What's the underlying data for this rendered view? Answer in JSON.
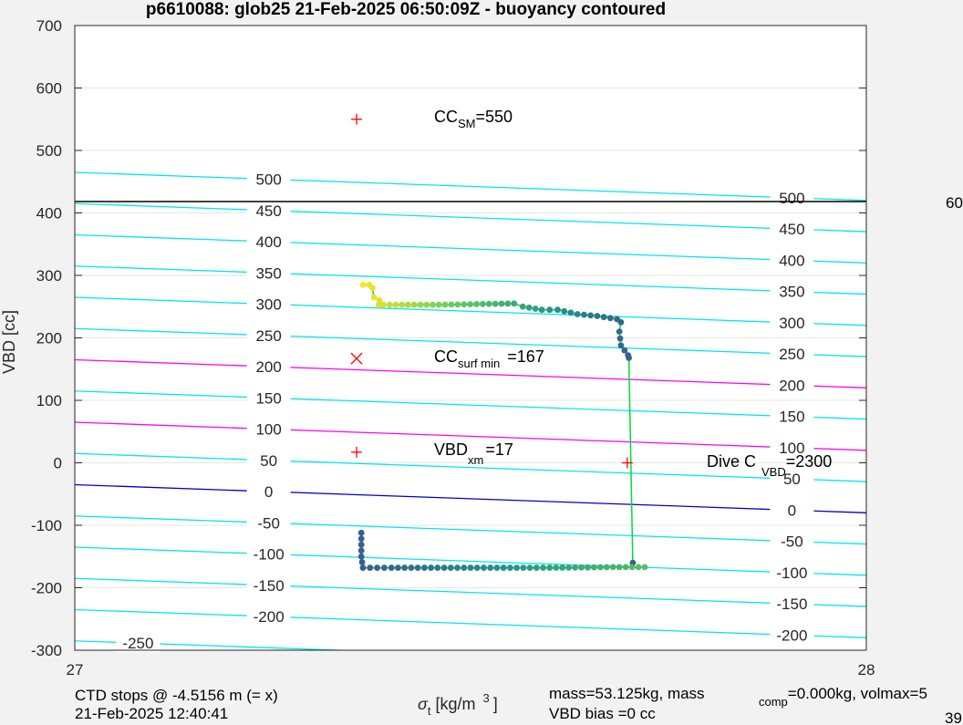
{
  "colors": {
    "figure_bg": "#f2f2f2",
    "axes_bg": "#ffffff",
    "grid": "#e6e6e6",
    "contour_cyan": "#00e6ee",
    "contour_magenta": "#ff00ff",
    "contour_blue": "#0000c8",
    "target_line": "#000000",
    "marker": "#ff0000",
    "path_line": "#00dd33"
  },
  "chart_data": {
    "type": "scatter",
    "title": "p6610088: glob25 21-Feb-2025 06:50:09Z - buoyancy contoured",
    "xlabel_main": "σ",
    "xlabel_sub": "t",
    "xlabel_unit": " [kg/m",
    "xlabel_sup": "3",
    "xlabel_close": "]",
    "ylabel": "VBD [cc]",
    "xlim": [
      27,
      28
    ],
    "ylim": [
      -300,
      700
    ],
    "grid": "on",
    "x_ticks": [
      "27",
      "28"
    ],
    "y_ticks": [
      "-300",
      "-200",
      "-100",
      "0",
      "100",
      "200",
      "300",
      "400",
      "500",
      "600",
      "700"
    ],
    "contour_lines": [
      {
        "level": -250,
        "y0": -285,
        "y1": -330,
        "color": "cyan"
      },
      {
        "level": -200,
        "y0": -235,
        "y1": -280,
        "color": "cyan"
      },
      {
        "level": -150,
        "y0": -185,
        "y1": -230,
        "color": "cyan"
      },
      {
        "level": -100,
        "y0": -135,
        "y1": -180,
        "color": "cyan"
      },
      {
        "level": -50,
        "y0": -85,
        "y1": -130,
        "color": "cyan"
      },
      {
        "level": 0,
        "y0": -35,
        "y1": -80,
        "color": "blue"
      },
      {
        "level": 50,
        "y0": 15,
        "y1": -30,
        "color": "cyan"
      },
      {
        "level": 100,
        "y0": 65,
        "y1": 20,
        "color": "magenta"
      },
      {
        "level": 150,
        "y0": 115,
        "y1": 70,
        "color": "cyan"
      },
      {
        "level": 200,
        "y0": 165,
        "y1": 120,
        "color": "magenta"
      },
      {
        "level": 250,
        "y0": 215,
        "y1": 170,
        "color": "cyan"
      },
      {
        "level": 300,
        "y0": 265,
        "y1": 220,
        "color": "cyan"
      },
      {
        "level": 350,
        "y0": 315,
        "y1": 270,
        "color": "cyan"
      },
      {
        "level": 400,
        "y0": 365,
        "y1": 320,
        "color": "cyan"
      },
      {
        "level": 450,
        "y0": 415,
        "y1": 370,
        "color": "cyan"
      },
      {
        "level": 500,
        "y0": 465,
        "y1": 420,
        "color": "cyan"
      }
    ],
    "contour_labels_left": [
      "500",
      "450",
      "400",
      "350",
      "300",
      "250",
      "200",
      "150",
      "100",
      "50",
      "0",
      "-50",
      "-100",
      "-150",
      "-200",
      "-250"
    ],
    "contour_labels_right": [
      "500",
      "450",
      "400",
      "350",
      "300",
      "250",
      "200",
      "150",
      "100",
      "50",
      "0",
      "-50",
      "-100",
      "-150",
      "-200"
    ],
    "target_vbd": 415,
    "markers": [
      {
        "name": "CC_SM",
        "x": 27.356,
        "y": 550,
        "symbol": "+"
      },
      {
        "name": "CC_surf_min",
        "x": 27.356,
        "y": 167,
        "symbol": "x"
      },
      {
        "name": "VBD_xm",
        "x": 27.356,
        "y": 17,
        "symbol": "+"
      },
      {
        "name": "Dive_C_VBD",
        "x": 27.698,
        "y": 0,
        "symbol": "+"
      }
    ],
    "descent_path": [
      {
        "x": 27.364,
        "y": 285
      },
      {
        "x": 27.372,
        "y": 285
      },
      {
        "x": 27.376,
        "y": 280
      },
      {
        "x": 27.378,
        "y": 265
      },
      {
        "x": 27.385,
        "y": 260
      },
      {
        "x": 27.384,
        "y": 253
      },
      {
        "x": 27.39,
        "y": 253
      },
      {
        "x": 27.46,
        "y": 253
      },
      {
        "x": 27.555,
        "y": 255
      },
      {
        "x": 27.566,
        "y": 250
      },
      {
        "x": 27.59,
        "y": 245
      },
      {
        "x": 27.61,
        "y": 245
      },
      {
        "x": 27.635,
        "y": 238
      },
      {
        "x": 27.66,
        "y": 235
      },
      {
        "x": 27.685,
        "y": 230
      },
      {
        "x": 27.69,
        "y": 225
      },
      {
        "x": 27.688,
        "y": 210
      },
      {
        "x": 27.69,
        "y": 188
      },
      {
        "x": 27.699,
        "y": 172
      },
      {
        "x": 27.7,
        "y": 168
      },
      {
        "x": 27.705,
        "y": -160
      }
    ],
    "climb_path": [
      {
        "x": 27.362,
        "y": -112
      },
      {
        "x": 27.362,
        "y": -150
      },
      {
        "x": 27.364,
        "y": -168
      },
      {
        "x": 27.4,
        "y": -168
      },
      {
        "x": 27.5,
        "y": -168
      },
      {
        "x": 27.6,
        "y": -168
      },
      {
        "x": 27.68,
        "y": -167
      },
      {
        "x": 27.72,
        "y": -167
      }
    ],
    "annotations": {
      "cc_sm": {
        "base": "CC",
        "sub": "SM",
        "rest": "=550"
      },
      "cc_surf_min": {
        "base": "CC",
        "sub": "surf min",
        "rest": "=167"
      },
      "vbd_xm": {
        "base": "VBD",
        "sub": "xm",
        "rest": "=17"
      },
      "dive_c": {
        "base": "Dive C",
        "sub": "VBD",
        "rest": "=2300"
      },
      "right_edge_600": "60",
      "right_edge_39": "39"
    },
    "footer": {
      "ctd_stops": "CTD stops @ -4.5156 m (= x)",
      "timestamp": "21-Feb-2025 12:40:41",
      "mass_line_a": "mass=53.125kg, mass",
      "mass_sub": "comp",
      "mass_line_b": "=0.000kg, volmax=5",
      "vbd_bias": "VBD bias =0 cc"
    }
  }
}
